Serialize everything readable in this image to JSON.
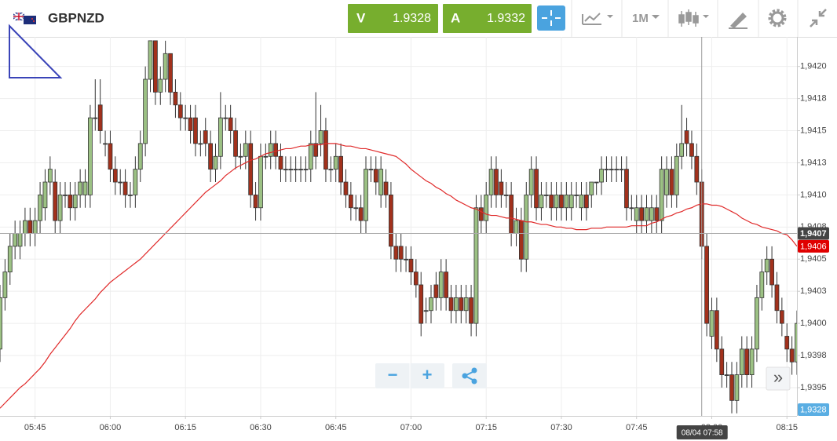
{
  "header": {
    "symbol": "GBPNZD",
    "sell_label": "V",
    "sell_price": "1.9328",
    "buy_label": "A",
    "buy_price": "1.9332",
    "timeframe": "1M"
  },
  "controls": {
    "zoom_out": "−",
    "zoom_in": "+",
    "scroll": "»"
  },
  "chart_data": {
    "type": "candlestick",
    "x": [
      338,
      339,
      340,
      341,
      342,
      343,
      344,
      345,
      346,
      347,
      348,
      349,
      350,
      351,
      352,
      353,
      354,
      355,
      356,
      357,
      358,
      359,
      360,
      361,
      362,
      363,
      364,
      365,
      366,
      367,
      368,
      369,
      370,
      371,
      372,
      373,
      374,
      375,
      376,
      377,
      378,
      379,
      380,
      381,
      382,
      383,
      384,
      385,
      386,
      387,
      388,
      389,
      390,
      391,
      392,
      393,
      394,
      395,
      396,
      397,
      398,
      399,
      400,
      401,
      402,
      403,
      404,
      405,
      406,
      407,
      408,
      409,
      410,
      411,
      412,
      413,
      414,
      415,
      416,
      417,
      418,
      419,
      420,
      421,
      422,
      423,
      424,
      425,
      426,
      427,
      428,
      429,
      430,
      431,
      432,
      433,
      434,
      435,
      436,
      437,
      438,
      439,
      440,
      441,
      442,
      443,
      444,
      445,
      446,
      447,
      448,
      449,
      450,
      451,
      452,
      453,
      454,
      455,
      456,
      457,
      458,
      459,
      460,
      461,
      462,
      463,
      464,
      465,
      466,
      467,
      468,
      469,
      470,
      471,
      472,
      473,
      474,
      475,
      476,
      477,
      478,
      479,
      480,
      481,
      482,
      483,
      484,
      485,
      486,
      487,
      488,
      489,
      490,
      491,
      492,
      493,
      494,
      495,
      496,
      497
    ],
    "open": [
      1.9398,
      1.9402,
      1.9404,
      1.9406,
      1.9406,
      1.9407,
      1.9408,
      1.9407,
      1.9408,
      1.9409,
      1.9411,
      1.9411,
      1.9408,
      1.941,
      1.941,
      1.9409,
      1.941,
      1.941,
      1.941,
      1.9416,
      1.9417,
      1.9414,
      1.9414,
      1.9412,
      1.9411,
      1.9411,
      1.941,
      1.941,
      1.9412,
      1.9414,
      1.9419,
      1.9422,
      1.9418,
      1.9419,
      1.9421,
      1.9418,
      1.9417,
      1.9416,
      1.9416,
      1.9416,
      1.9414,
      1.9415,
      1.9414,
      1.9412,
      1.9413,
      1.9416,
      1.9416,
      1.9415,
      1.9413,
      1.9413,
      1.9414,
      1.941,
      1.9409,
      1.9413,
      1.9413,
      1.9414,
      1.9413,
      1.9412,
      1.9412,
      1.9412,
      1.9412,
      1.9412,
      1.9412,
      1.9414,
      1.9414,
      1.9415,
      1.9412,
      1.9412,
      1.9413,
      1.9411,
      1.941,
      1.9409,
      1.9409,
      1.9408,
      1.9412,
      1.9412,
      1.941,
      1.9411,
      1.941,
      1.9406,
      1.9406,
      1.9405,
      1.9405,
      1.9404,
      1.9403,
      1.9401,
      1.9401,
      1.9403,
      1.9402,
      1.9404,
      1.9402,
      1.9401,
      1.9402,
      1.9401,
      1.9402,
      1.94,
      1.9409,
      1.9408,
      1.941,
      1.9412,
      1.9411,
      1.941,
      1.941,
      1.9407,
      1.9408,
      1.9405,
      1.941,
      1.9412,
      1.9409,
      1.941,
      1.941,
      1.9409,
      1.941,
      1.9409,
      1.9409,
      1.941,
      1.9409,
      1.941,
      1.941,
      1.9411,
      1.9411,
      1.9412,
      1.9412,
      1.9412,
      1.9412,
      1.9412,
      1.9409,
      1.9408,
      1.9409,
      1.9408,
      1.9408,
      1.9409,
      1.9408,
      1.941,
      1.9412,
      1.941,
      1.9413,
      1.9415,
      1.9414,
      1.9413,
      1.9411,
      1.9406,
      1.9399,
      1.9401,
      1.9398,
      1.9396,
      1.9396,
      1.9394,
      1.9396,
      1.9398,
      1.9396,
      1.9398,
      1.9402,
      1.9404,
      1.9405,
      1.9403,
      1.9401,
      1.9399,
      1.9398,
      1.9397
    ],
    "high": [
      1.9403,
      1.9405,
      1.9407,
      1.9408,
      1.9408,
      1.9409,
      1.9409,
      1.9409,
      1.9411,
      1.9412,
      1.9413,
      1.9412,
      1.9411,
      1.9411,
      1.9411,
      1.9411,
      1.9412,
      1.9412,
      1.9417,
      1.9419,
      1.9419,
      1.9415,
      1.9415,
      1.9413,
      1.9412,
      1.9412,
      1.9411,
      1.9413,
      1.9415,
      1.942,
      1.9422,
      1.9422,
      1.942,
      1.9422,
      1.9421,
      1.9419,
      1.9418,
      1.9417,
      1.9417,
      1.9417,
      1.9415,
      1.9416,
      1.9415,
      1.9414,
      1.9418,
      1.9417,
      1.9417,
      1.9416,
      1.9414,
      1.9415,
      1.9415,
      1.9411,
      1.9414,
      1.9414,
      1.9415,
      1.9415,
      1.9414,
      1.9413,
      1.9413,
      1.9413,
      1.9413,
      1.9413,
      1.9415,
      1.9418,
      1.9417,
      1.9416,
      1.9413,
      1.9414,
      1.9414,
      1.9412,
      1.9411,
      1.941,
      1.941,
      1.9413,
      1.9413,
      1.9413,
      1.9413,
      1.9412,
      1.9411,
      1.9407,
      1.9407,
      1.9406,
      1.9406,
      1.9405,
      1.9404,
      1.9402,
      1.9403,
      1.9404,
      1.9405,
      1.9405,
      1.9403,
      1.9403,
      1.9403,
      1.9403,
      1.9403,
      1.941,
      1.941,
      1.9411,
      1.9413,
      1.9413,
      1.9412,
      1.9411,
      1.9411,
      1.9409,
      1.9409,
      1.9411,
      1.9413,
      1.9413,
      1.9411,
      1.9411,
      1.9411,
      1.9411,
      1.9411,
      1.9411,
      1.9411,
      1.9411,
      1.9411,
      1.9411,
      1.9411,
      1.9411,
      1.9413,
      1.9413,
      1.9413,
      1.9413,
      1.9413,
      1.9413,
      1.941,
      1.941,
      1.941,
      1.941,
      1.941,
      1.941,
      1.9413,
      1.9413,
      1.9413,
      1.9414,
      1.9417,
      1.9416,
      1.9415,
      1.9414,
      1.9412,
      1.9407,
      1.9402,
      1.9402,
      1.9399,
      1.9397,
      1.9397,
      1.9397,
      1.9399,
      1.9399,
      1.9399,
      1.9403,
      1.9405,
      1.9406,
      1.9406,
      1.9404,
      1.9402,
      1.94,
      1.9399,
      1.9401
    ],
    "low": [
      1.9397,
      1.9401,
      1.9403,
      1.9405,
      1.9405,
      1.9406,
      1.9406,
      1.9406,
      1.9407,
      1.9408,
      1.941,
      1.9407,
      1.9407,
      1.9409,
      1.9408,
      1.9408,
      1.9409,
      1.9409,
      1.9409,
      1.9415,
      1.9414,
      1.9413,
      1.9411,
      1.941,
      1.941,
      1.9409,
      1.9409,
      1.9409,
      1.9411,
      1.9413,
      1.9418,
      1.9417,
      1.9417,
      1.9418,
      1.9417,
      1.9416,
      1.9415,
      1.9415,
      1.9414,
      1.9413,
      1.9413,
      1.9413,
      1.9411,
      1.9411,
      1.9412,
      1.9415,
      1.9414,
      1.9412,
      1.9412,
      1.9412,
      1.9409,
      1.9408,
      1.9408,
      1.9412,
      1.9412,
      1.9412,
      1.9411,
      1.9411,
      1.9411,
      1.9411,
      1.9411,
      1.9411,
      1.9411,
      1.9412,
      1.9413,
      1.9411,
      1.9411,
      1.9411,
      1.941,
      1.9409,
      1.9408,
      1.9408,
      1.9407,
      1.9407,
      1.9411,
      1.941,
      1.9409,
      1.9409,
      1.9405,
      1.9404,
      1.9404,
      1.9404,
      1.9403,
      1.9402,
      1.9399,
      1.94,
      1.94,
      1.9401,
      1.9401,
      1.9401,
      1.94,
      1.94,
      1.94,
      1.94,
      1.9399,
      1.9399,
      1.9407,
      1.9407,
      1.9409,
      1.9409,
      1.9409,
      1.9409,
      1.9406,
      1.9406,
      1.9404,
      1.9404,
      1.9409,
      1.9408,
      1.9408,
      1.9409,
      1.9408,
      1.9408,
      1.9408,
      1.9408,
      1.9408,
      1.9409,
      1.9408,
      1.9408,
      1.9409,
      1.941,
      1.941,
      1.9411,
      1.9411,
      1.9411,
      1.9411,
      1.9408,
      1.9408,
      1.9407,
      1.9407,
      1.9407,
      1.9407,
      1.9407,
      1.9407,
      1.9409,
      1.9409,
      1.9409,
      1.9412,
      1.9413,
      1.9412,
      1.941,
      1.9405,
      1.9399,
      1.9398,
      1.9397,
      1.9395,
      1.9395,
      1.9393,
      1.9393,
      1.9395,
      1.9395,
      1.9395,
      1.9397,
      1.9401,
      1.9403,
      1.9402,
      1.94,
      1.9399,
      1.9397,
      1.9396,
      1.9396
    ],
    "close": [
      1.9402,
      1.9404,
      1.9406,
      1.9407,
      1.9407,
      1.9408,
      1.9407,
      1.9408,
      1.941,
      1.9411,
      1.9412,
      1.9408,
      1.941,
      1.941,
      1.9409,
      1.941,
      1.9411,
      1.9411,
      1.9416,
      1.9416,
      1.9415,
      1.9414,
      1.9412,
      1.9411,
      1.9411,
      1.941,
      1.941,
      1.9412,
      1.9414,
      1.9419,
      1.9422,
      1.9418,
      1.9419,
      1.9421,
      1.9418,
      1.9417,
      1.9416,
      1.9416,
      1.9415,
      1.9414,
      1.9414,
      1.9414,
      1.9412,
      1.9413,
      1.9416,
      1.9416,
      1.9415,
      1.9413,
      1.9413,
      1.9414,
      1.941,
      1.9409,
      1.9413,
      1.9413,
      1.9414,
      1.9413,
      1.9412,
      1.9412,
      1.9412,
      1.9412,
      1.9412,
      1.9412,
      1.9414,
      1.9413,
      1.9415,
      1.9412,
      1.9412,
      1.9413,
      1.9411,
      1.941,
      1.9409,
      1.9409,
      1.9408,
      1.9412,
      1.9412,
      1.9411,
      1.9412,
      1.941,
      1.9406,
      1.9405,
      1.9405,
      1.9405,
      1.9404,
      1.9403,
      1.94,
      1.9401,
      1.9402,
      1.9402,
      1.9404,
      1.9402,
      1.9401,
      1.9402,
      1.9401,
      1.9402,
      1.94,
      1.9409,
      1.9408,
      1.941,
      1.9412,
      1.941,
      1.941,
      1.941,
      1.9407,
      1.9408,
      1.9405,
      1.941,
      1.9412,
      1.9409,
      1.941,
      1.941,
      1.9409,
      1.941,
      1.9409,
      1.941,
      1.941,
      1.941,
      1.941,
      1.9409,
      1.9411,
      1.9411,
      1.9412,
      1.9412,
      1.9412,
      1.9412,
      1.9412,
      1.9409,
      1.9409,
      1.9409,
      1.9408,
      1.9409,
      1.9409,
      1.9408,
      1.9412,
      1.9412,
      1.941,
      1.9413,
      1.9414,
      1.9414,
      1.9413,
      1.9411,
      1.9406,
      1.94,
      1.9401,
      1.9398,
      1.9396,
      1.9396,
      1.9394,
      1.9396,
      1.9398,
      1.9396,
      1.9398,
      1.9402,
      1.9404,
      1.9405,
      1.9403,
      1.9401,
      1.94,
      1.9398,
      1.9397,
      1.94
    ],
    "up_color": "#9cc184",
    "down_color": "#a2311c",
    "ma": {
      "color": "#e02a2a",
      "last_label": "1,9406",
      "values": [
        1.93934,
        1.93938,
        1.93942,
        1.93946,
        1.9395,
        1.93953,
        1.93957,
        1.93961,
        1.93965,
        1.9397,
        1.93976,
        1.93981,
        1.93986,
        1.93991,
        1.93996,
        1.94002,
        1.94007,
        1.94011,
        1.94015,
        1.94019,
        1.94024,
        1.94028,
        1.94032,
        1.94035,
        1.94038,
        1.94041,
        1.94044,
        1.94047,
        1.9405,
        1.94054,
        1.94058,
        1.94062,
        1.94066,
        1.9407,
        1.94074,
        1.94078,
        1.94082,
        1.94086,
        1.9409,
        1.94094,
        1.94098,
        1.94102,
        1.94105,
        1.94108,
        1.94111,
        1.94115,
        1.94118,
        1.94121,
        1.94123,
        1.94125,
        1.94127,
        1.94128,
        1.9413,
        1.94132,
        1.94133,
        1.94134,
        1.94135,
        1.94136,
        1.94136,
        1.94137,
        1.94138,
        1.94138,
        1.94139,
        1.94139,
        1.94139,
        1.9414,
        1.9414,
        1.9414,
        1.94139,
        1.94138,
        1.94138,
        1.94137,
        1.94136,
        1.94136,
        1.94135,
        1.94134,
        1.94133,
        1.94132,
        1.94131,
        1.9413,
        1.94127,
        1.94124,
        1.9412,
        1.94117,
        1.94114,
        1.94111,
        1.94109,
        1.94106,
        1.94104,
        1.94101,
        1.94099,
        1.94096,
        1.94094,
        1.94092,
        1.9409,
        1.94089,
        1.94087,
        1.94085,
        1.94084,
        1.94084,
        1.94083,
        1.94082,
        1.94082,
        1.94081,
        1.9408,
        1.94079,
        1.94079,
        1.94078,
        1.94077,
        1.94077,
        1.94076,
        1.94075,
        1.94075,
        1.94074,
        1.94074,
        1.94073,
        1.94073,
        1.94073,
        1.94074,
        1.94074,
        1.94074,
        1.94075,
        1.94075,
        1.94075,
        1.94075,
        1.94075,
        1.94076,
        1.94076,
        1.94076,
        1.94076,
        1.94078,
        1.94079,
        1.94081,
        1.94083,
        1.94084,
        1.94086,
        1.94087,
        1.94089,
        1.9409,
        1.94092,
        1.94093,
        1.94093,
        1.94092,
        1.94092,
        1.94091,
        1.94089,
        1.94087,
        1.94085,
        1.94082,
        1.9408,
        1.94078,
        1.94077,
        1.94075,
        1.94074,
        1.94073,
        1.94072,
        1.9407,
        1.94069,
        1.94065,
        1.9406
      ]
    },
    "xlim": [
      338,
      497
    ],
    "xticks": [
      {
        "value": 345,
        "label": "05:45"
      },
      {
        "value": 360,
        "label": "06:00"
      },
      {
        "value": 375,
        "label": "06:15"
      },
      {
        "value": 390,
        "label": "06:30"
      },
      {
        "value": 405,
        "label": "06:45"
      },
      {
        "value": 420,
        "label": "07:00"
      },
      {
        "value": 435,
        "label": "07:15"
      },
      {
        "value": 450,
        "label": "07:30"
      },
      {
        "value": 465,
        "label": "07:45"
      },
      {
        "value": 480,
        "label": "08:00"
      },
      {
        "value": 495,
        "label": "08:15"
      }
    ],
    "ylim": [
      1.93928,
      1.94223
    ],
    "yticks": [
      {
        "value": 1.942,
        "label": "1,9420"
      },
      {
        "value": 1.94175,
        "label": "1,9418"
      },
      {
        "value": 1.9415,
        "label": "1,9415"
      },
      {
        "value": 1.94125,
        "label": "1,9413"
      },
      {
        "value": 1.941,
        "label": "1,9410"
      },
      {
        "value": 1.94075,
        "label": "1,9408"
      },
      {
        "value": 1.9405,
        "label": "1,9405"
      },
      {
        "value": 1.94025,
        "label": "1,9403"
      },
      {
        "value": 1.94,
        "label": "1,9400"
      },
      {
        "value": 1.93975,
        "label": "1,9398"
      },
      {
        "value": 1.9395,
        "label": "1,9395"
      }
    ],
    "grid": true,
    "crosshair": {
      "x": {
        "value": 478,
        "label": "08/04 07:58"
      },
      "y": {
        "value": 1.9407,
        "label": "1,9407"
      }
    },
    "bid": {
      "value": 1.9328,
      "label": "1,9328"
    }
  }
}
